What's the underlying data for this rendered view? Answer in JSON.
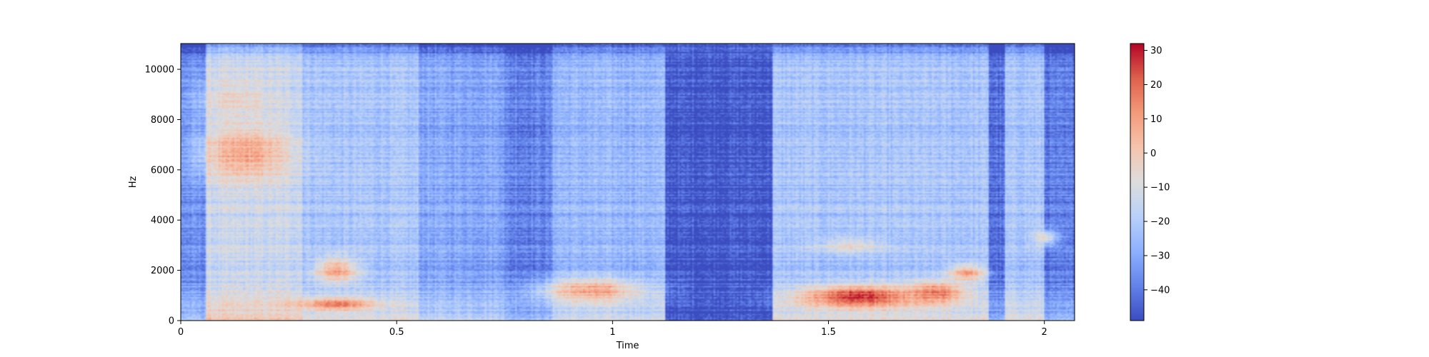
{
  "chart_data": {
    "type": "heatmap",
    "title": "",
    "xlabel": "Time",
    "ylabel": "Hz",
    "xlim": [
      0,
      2.07
    ],
    "ylim": [
      0,
      11025
    ],
    "xticks": [
      {
        "value": 0,
        "label": "0"
      },
      {
        "value": 0.5,
        "label": "0.5"
      },
      {
        "value": 1,
        "label": "1"
      },
      {
        "value": 1.5,
        "label": "1.5"
      },
      {
        "value": 2,
        "label": "2"
      }
    ],
    "yticks": [
      {
        "value": 0,
        "label": "0"
      },
      {
        "value": 2000,
        "label": "2000"
      },
      {
        "value": 4000,
        "label": "4000"
      },
      {
        "value": 6000,
        "label": "6000"
      },
      {
        "value": 8000,
        "label": "8000"
      },
      {
        "value": 10000,
        "label": "10000"
      }
    ],
    "colormap": "coolwarm",
    "color_range": [
      -49,
      32
    ],
    "colorbar": {
      "ticks": [
        {
          "value": 30,
          "label": "30"
        },
        {
          "value": 20,
          "label": "20"
        },
        {
          "value": 10,
          "label": "10"
        },
        {
          "value": 0,
          "label": "0"
        },
        {
          "value": -10,
          "label": "−10"
        },
        {
          "value": -20,
          "label": "−20"
        },
        {
          "value": -30,
          "label": "−30"
        },
        {
          "value": -40,
          "label": "−40"
        }
      ]
    },
    "time_segments": [
      {
        "start": 0.0,
        "end": 0.06,
        "level": -36
      },
      {
        "start": 0.06,
        "end": 0.28,
        "level": -14
      },
      {
        "start": 0.28,
        "end": 0.55,
        "level": -22
      },
      {
        "start": 0.55,
        "end": 0.75,
        "level": -30
      },
      {
        "start": 0.75,
        "end": 0.86,
        "level": -38
      },
      {
        "start": 0.86,
        "end": 1.12,
        "level": -26
      },
      {
        "start": 1.12,
        "end": 1.37,
        "level": -46
      },
      {
        "start": 1.37,
        "end": 1.87,
        "level": -22
      },
      {
        "start": 1.87,
        "end": 1.91,
        "level": -42
      },
      {
        "start": 1.91,
        "end": 2.0,
        "level": -22
      },
      {
        "start": 2.0,
        "end": 2.07,
        "level": -40
      }
    ],
    "hotspots": [
      {
        "t": 0.15,
        "f": 6700,
        "dt": 0.1,
        "df": 1100,
        "value": 8
      },
      {
        "t": 0.13,
        "f": 8800,
        "dt": 0.08,
        "df": 900,
        "value": -6
      },
      {
        "t": 0.36,
        "f": 2000,
        "dt": 0.05,
        "df": 500,
        "value": 10
      },
      {
        "t": 0.36,
        "f": 650,
        "dt": 0.09,
        "df": 250,
        "value": 16
      },
      {
        "t": 0.95,
        "f": 1200,
        "dt": 0.12,
        "df": 500,
        "value": 8
      },
      {
        "t": 1.57,
        "f": 950,
        "dt": 0.13,
        "df": 450,
        "value": 27
      },
      {
        "t": 1.75,
        "f": 1100,
        "dt": 0.07,
        "df": 450,
        "value": 16
      },
      {
        "t": 1.82,
        "f": 1900,
        "dt": 0.04,
        "df": 350,
        "value": 10
      },
      {
        "t": 1.55,
        "f": 3000,
        "dt": 0.07,
        "df": 300,
        "value": -6
      },
      {
        "t": 2.0,
        "f": 3300,
        "dt": 0.03,
        "df": 300,
        "value": -6
      }
    ]
  }
}
